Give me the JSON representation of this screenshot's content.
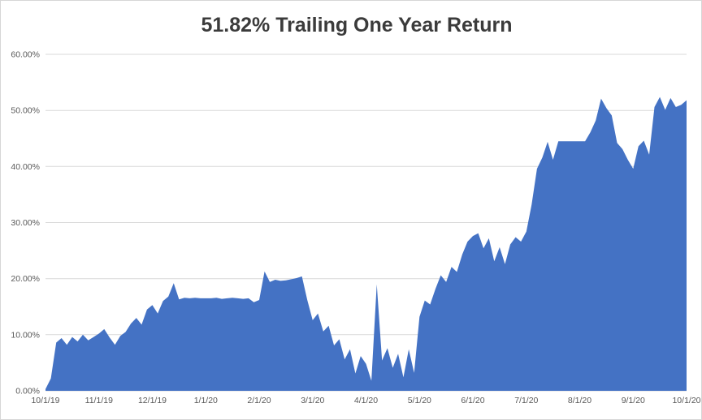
{
  "figure": {
    "background_color": "#FFFFFF",
    "border_color": "#D6D6D6"
  },
  "chart_data": {
    "type": "area",
    "title": "51.82% Trailing One Year Return",
    "title_color": "#3B3B3B",
    "fill_color": "#4472C4",
    "grid_color": "#D9D9D9",
    "axis_label_color": "#595959",
    "grid": true,
    "legend": "none",
    "xlabel": "",
    "ylabel": "",
    "ylim": [
      0,
      60
    ],
    "y_tick_values": [
      0,
      10,
      20,
      30,
      40,
      50,
      60
    ],
    "y_tick_labels": [
      "0.00%",
      "10.00%",
      "20.00%",
      "30.00%",
      "40.00%",
      "50.00%",
      "60.00%"
    ],
    "x_tick_labels": [
      "10/1/19",
      "11/1/19",
      "12/1/19",
      "1/1/20",
      "2/1/20",
      "3/1/20",
      "4/1/20",
      "5/1/20",
      "6/1/20",
      "7/1/20",
      "8/1/20",
      "9/1/20",
      "10/1/20"
    ],
    "final_value_pct": 51.82,
    "series": [
      {
        "name": "Trailing One Year Return",
        "values": [
          0.3,
          2.2,
          8.6,
          9.4,
          8.2,
          9.6,
          8.8,
          10.0,
          9.0,
          9.6,
          10.2,
          11.0,
          9.5,
          8.2,
          9.8,
          10.5,
          12.0,
          13.0,
          11.8,
          14.5,
          15.3,
          13.8,
          16.0,
          16.8,
          19.2,
          16.3,
          16.6,
          16.5,
          16.6,
          16.5,
          16.5,
          16.5,
          16.6,
          16.4,
          16.5,
          16.6,
          16.5,
          16.4,
          16.5,
          15.8,
          16.2,
          21.3,
          19.4,
          19.8,
          19.6,
          19.7,
          19.9,
          20.1,
          20.4,
          16.2,
          12.6,
          13.8,
          10.6,
          11.6,
          8.1,
          9.2,
          5.6,
          7.4,
          3.1,
          6.2,
          4.8,
          1.8,
          19.0,
          5.4,
          7.6,
          4.1,
          6.6,
          2.4,
          7.4,
          3.2,
          13.2,
          16.1,
          15.4,
          18.2,
          20.6,
          19.4,
          22.1,
          21.2,
          24.3,
          26.6,
          27.6,
          28.1,
          25.4,
          27.2,
          23.1,
          25.6,
          22.6,
          26.1,
          27.4,
          26.6,
          28.4,
          33.2,
          39.6,
          41.6,
          44.4,
          41.2,
          44.5,
          44.5,
          44.5,
          44.5,
          44.5,
          44.5,
          46.1,
          48.2,
          52.1,
          50.4,
          49.1,
          44.2,
          43.1,
          41.2,
          39.6,
          43.6,
          44.6,
          42.1,
          50.6,
          52.4,
          50.1,
          52.2,
          50.6,
          51.0,
          51.82
        ]
      }
    ]
  }
}
